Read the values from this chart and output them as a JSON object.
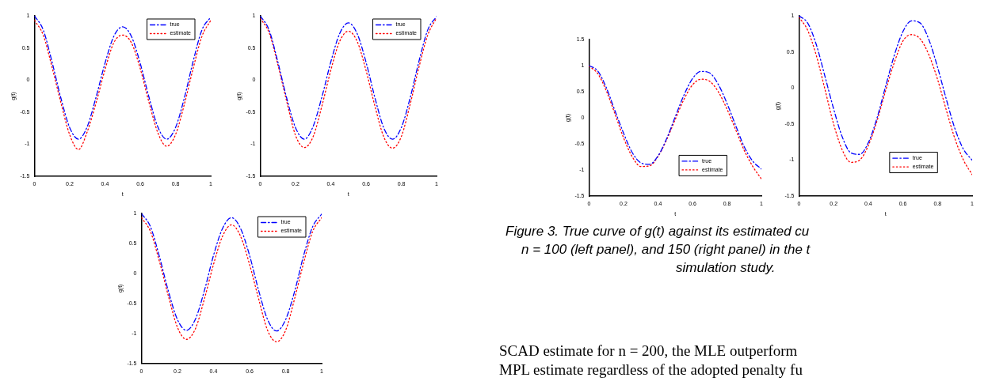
{
  "chart_data": [
    {
      "type": "line",
      "xlabel": "t",
      "ylabel": "g(t)",
      "xlim": [
        0,
        1
      ],
      "ylim": [
        -1.5,
        1
      ],
      "xticks": [
        0,
        0.2,
        0.4,
        0.6,
        0.8,
        1
      ],
      "yticks": [
        -1.5,
        -1,
        -0.5,
        0,
        0.5,
        1
      ],
      "legend": "top right",
      "x": [
        0,
        0.05,
        0.1,
        0.15,
        0.2,
        0.25,
        0.3,
        0.35,
        0.4,
        0.45,
        0.5,
        0.55,
        0.6,
        0.65,
        0.7,
        0.75,
        0.8,
        0.85,
        0.9,
        0.95,
        1
      ],
      "series": [
        {
          "name": "true",
          "color": "#0000ff",
          "line_style": "dashed",
          "values": [
            1.0,
            0.78,
            0.28,
            -0.28,
            -0.74,
            -0.92,
            -0.72,
            -0.26,
            0.26,
            0.68,
            0.83,
            0.68,
            0.26,
            -0.27,
            -0.73,
            -0.92,
            -0.74,
            -0.28,
            0.29,
            0.78,
            0.98
          ]
        },
        {
          "name": "estimate",
          "color": "#ff0000",
          "line_style": "dotted",
          "values": [
            0.93,
            0.7,
            0.2,
            -0.35,
            -0.85,
            -1.08,
            -0.8,
            -0.35,
            0.16,
            0.58,
            0.7,
            0.58,
            0.18,
            -0.35,
            -0.82,
            -1.03,
            -0.85,
            -0.38,
            0.18,
            0.68,
            0.93
          ]
        }
      ]
    },
    {
      "type": "line",
      "xlabel": "t",
      "ylabel": "g(t)",
      "xlim": [
        0,
        1
      ],
      "ylim": [
        -1.5,
        1
      ],
      "xticks": [
        0,
        0.2,
        0.4,
        0.6,
        0.8,
        1
      ],
      "yticks": [
        -1.5,
        -1,
        -0.5,
        0,
        0.5,
        1
      ],
      "legend": "top right",
      "x": [
        0,
        0.05,
        0.1,
        0.15,
        0.2,
        0.25,
        0.3,
        0.35,
        0.4,
        0.45,
        0.5,
        0.55,
        0.6,
        0.65,
        0.7,
        0.75,
        0.8,
        0.85,
        0.9,
        0.95,
        1
      ],
      "series": [
        {
          "name": "true",
          "color": "#0000ff",
          "line_style": "dashed",
          "values": [
            1.0,
            0.78,
            0.28,
            -0.28,
            -0.74,
            -0.92,
            -0.72,
            -0.26,
            0.28,
            0.72,
            0.89,
            0.72,
            0.28,
            -0.27,
            -0.74,
            -0.92,
            -0.74,
            -0.28,
            0.29,
            0.78,
            0.99
          ]
        },
        {
          "name": "estimate",
          "color": "#ff0000",
          "line_style": "dotted",
          "values": [
            0.96,
            0.74,
            0.24,
            -0.33,
            -0.86,
            -1.05,
            -0.88,
            -0.4,
            0.15,
            0.6,
            0.76,
            0.6,
            0.15,
            -0.4,
            -0.88,
            -1.06,
            -0.88,
            -0.38,
            0.2,
            0.7,
            0.97
          ]
        }
      ]
    },
    {
      "type": "line",
      "ylabel": "g(t)",
      "xlim": [
        0,
        1
      ],
      "ylim": [
        -1.5,
        1
      ],
      "xticks": [
        0,
        0.2,
        0.4,
        0.6,
        0.8,
        1
      ],
      "yticks": [
        -1.5,
        -1,
        -0.5,
        0,
        0.5,
        1
      ],
      "legend": "top right",
      "x": [
        0,
        0.05,
        0.1,
        0.15,
        0.2,
        0.25,
        0.3,
        0.35,
        0.4,
        0.45,
        0.5,
        0.55,
        0.6,
        0.65,
        0.7,
        0.75,
        0.8,
        0.85,
        0.9,
        0.95,
        1
      ],
      "series": [
        {
          "name": "true",
          "color": "#0000ff",
          "line_style": "dashed",
          "values": [
            1.0,
            0.78,
            0.28,
            -0.3,
            -0.77,
            -0.95,
            -0.76,
            -0.28,
            0.3,
            0.75,
            0.93,
            0.75,
            0.3,
            -0.28,
            -0.77,
            -0.96,
            -0.77,
            -0.3,
            0.3,
            0.78,
            0.99
          ]
        },
        {
          "name": "estimate",
          "color": "#ff0000",
          "line_style": "dotted",
          "values": [
            0.93,
            0.7,
            0.2,
            -0.38,
            -0.9,
            -1.1,
            -0.92,
            -0.42,
            0.15,
            0.62,
            0.81,
            0.62,
            0.15,
            -0.42,
            -0.95,
            -1.14,
            -0.95,
            -0.42,
            0.18,
            0.7,
            0.93
          ]
        }
      ]
    },
    {
      "type": "line",
      "xlabel": "t",
      "ylabel": "g(t)",
      "xlim": [
        0,
        1
      ],
      "ylim": [
        -1.5,
        1.5
      ],
      "xticks": [
        0,
        0.2,
        0.4,
        0.6,
        0.8,
        1
      ],
      "yticks": [
        -1.5,
        -1,
        -0.5,
        0,
        0.5,
        1,
        1.5
      ],
      "legend": "bottom right",
      "annotations": [
        "Figure 3.  True curve of g(t) against its estimated cu",
        "n = 100 (left panel), and 150 (right panel) in the t",
        "simulation study.",
        "SCAD estimate for n = 200, the MLE outperform",
        "MPL estimate regardless of the adopted penalty fu"
      ],
      "x": [
        0,
        0.05,
        0.1,
        0.15,
        0.2,
        0.25,
        0.3,
        0.35,
        0.4,
        0.45,
        0.5,
        0.55,
        0.6,
        0.65,
        0.7,
        0.75,
        0.8,
        0.85,
        0.9,
        0.95,
        1
      ],
      "series": [
        {
          "name": "true",
          "color": "#0000ff",
          "line_style": "dashed",
          "values": [
            1.0,
            0.9,
            0.58,
            0.14,
            -0.29,
            -0.66,
            -0.86,
            -0.89,
            -0.73,
            -0.4,
            0.02,
            0.43,
            0.75,
            0.89,
            0.86,
            0.64,
            0.28,
            -0.14,
            -0.55,
            -0.83,
            -0.98
          ]
        },
        {
          "name": "estimate",
          "color": "#ff0000",
          "line_style": "dotted",
          "values": [
            0.99,
            0.85,
            0.52,
            0.08,
            -0.38,
            -0.74,
            -0.93,
            -0.92,
            -0.74,
            -0.42,
            -0.03,
            0.35,
            0.63,
            0.74,
            0.7,
            0.5,
            0.17,
            -0.22,
            -0.62,
            -0.93,
            -1.17
          ]
        }
      ]
    },
    {
      "type": "line",
      "xlabel": "t",
      "ylabel": "g(t)",
      "xlim": [
        0,
        1
      ],
      "ylim": [
        -1.5,
        1
      ],
      "xticks": [
        0,
        0.2,
        0.4,
        0.6,
        0.8,
        1
      ],
      "yticks": [
        -1.5,
        -1,
        -0.5,
        0,
        0.5,
        1
      ],
      "legend": "bottom right",
      "x": [
        0,
        0.05,
        0.1,
        0.15,
        0.2,
        0.25,
        0.3,
        0.35,
        0.4,
        0.45,
        0.5,
        0.55,
        0.6,
        0.65,
        0.7,
        0.75,
        0.8,
        0.85,
        0.9,
        0.95,
        1
      ],
      "series": [
        {
          "name": "true",
          "color": "#0000ff",
          "line_style": "dashed",
          "values": [
            1.0,
            0.9,
            0.6,
            0.16,
            -0.29,
            -0.68,
            -0.9,
            -0.92,
            -0.76,
            -0.42,
            0.02,
            0.45,
            0.78,
            0.93,
            0.9,
            0.67,
            0.29,
            -0.15,
            -0.56,
            -0.85,
            -1.0
          ]
        },
        {
          "name": "estimate",
          "color": "#ff0000",
          "line_style": "dotted",
          "values": [
            0.98,
            0.8,
            0.45,
            -0.02,
            -0.5,
            -0.86,
            -1.03,
            -1.0,
            -0.8,
            -0.46,
            -0.04,
            0.35,
            0.65,
            0.74,
            0.68,
            0.46,
            0.12,
            -0.3,
            -0.7,
            -1.0,
            -1.2
          ]
        }
      ]
    }
  ]
}
